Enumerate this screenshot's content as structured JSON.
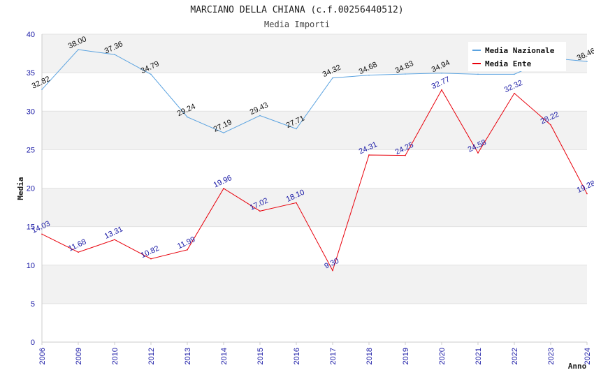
{
  "chart_data": {
    "type": "line",
    "title": "MARCIANO DELLA CHIANA (c.f.00256440512)",
    "subtitle": "Media Importi",
    "xlabel": "Anno",
    "ylabel": "Media",
    "ylim": [
      0,
      40
    ],
    "yticks": [
      "0",
      "5",
      "10",
      "15",
      "20",
      "25",
      "30",
      "35",
      "40"
    ],
    "categories": [
      "2006",
      "2009",
      "2010",
      "2012",
      "2013",
      "2014",
      "2015",
      "2016",
      "2017",
      "2018",
      "2019",
      "2020",
      "2021",
      "2022",
      "2023",
      "2024"
    ],
    "grid": true,
    "legend_position": "top-right",
    "series": [
      {
        "name": "Media Nazionale",
        "color": "#5ba3e0",
        "values": [
          32.82,
          38.0,
          37.36,
          34.79,
          29.24,
          27.19,
          29.43,
          27.71,
          34.32,
          34.68,
          34.83,
          34.94,
          34.8,
          34.8,
          36.9,
          36.46
        ],
        "labels": [
          "32.82",
          "38.00",
          "37.36",
          "34.79",
          "29.24",
          "27.19",
          "29.43",
          "27.71",
          "34.32",
          "34.68",
          "34.83",
          "34.94",
          "",
          "",
          "",
          "36.46"
        ]
      },
      {
        "name": "Media Ente",
        "color": "#e8000b",
        "values": [
          14.03,
          11.68,
          13.31,
          10.82,
          11.99,
          19.96,
          17.02,
          18.1,
          9.3,
          24.31,
          24.25,
          32.77,
          24.58,
          32.32,
          28.22,
          19.28
        ],
        "labels": [
          "14.03",
          "11.68",
          "13.31",
          "10.82",
          "11.99",
          "19.96",
          "17.02",
          "18.10",
          "9.30",
          "24.31",
          "24.25",
          "32.77",
          "24.58",
          "32.32",
          "28.22",
          "19.28"
        ]
      }
    ]
  }
}
